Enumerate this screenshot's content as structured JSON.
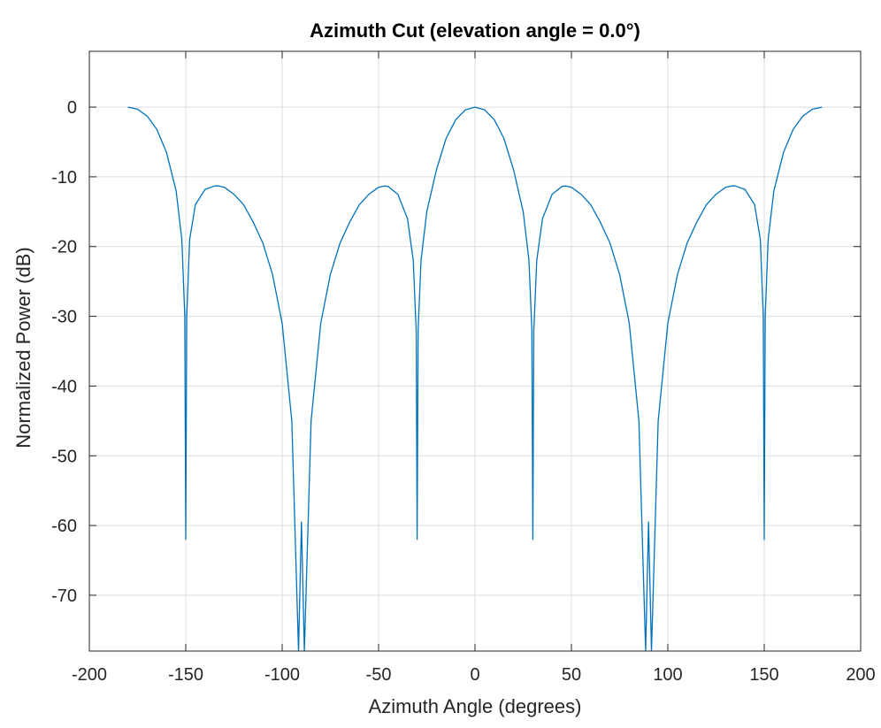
{
  "chart_data": {
    "type": "line",
    "title": "Azimuth Cut (elevation angle = 0.0°)",
    "xlabel": "Azimuth Angle (degrees)",
    "ylabel": "Normalized Power (dB)",
    "xlim": [
      -200,
      200
    ],
    "ylim": [
      -78,
      8
    ],
    "xticks": [
      -200,
      -150,
      -100,
      -50,
      0,
      50,
      100,
      150,
      200
    ],
    "yticks": [
      0,
      -10,
      -20,
      -30,
      -40,
      -50,
      -60,
      -70
    ],
    "grid": true,
    "legend": "none",
    "line_color": "#0072BD",
    "series": [
      {
        "x": [
          -180,
          -175,
          -170,
          -165,
          -160,
          -155,
          -152,
          -150.5,
          -150,
          -149.5,
          -148,
          -145,
          -140,
          -135,
          -133,
          -130,
          -125,
          -120,
          -115,
          -110,
          -105,
          -100,
          -95,
          -91.5,
          -90,
          -88.5,
          -85,
          -80,
          -75,
          -70,
          -65,
          -60,
          -55,
          -50,
          -47,
          -45,
          -40,
          -35,
          -32,
          -30.5,
          -30,
          -29.5,
          -28,
          -25,
          -20,
          -15,
          -10,
          -5,
          0,
          5,
          10,
          15,
          20,
          25,
          28,
          29.5,
          30,
          30.5,
          32,
          35,
          40,
          45,
          47,
          50,
          55,
          60,
          65,
          70,
          75,
          80,
          85,
          88.5,
          90,
          91.5,
          95,
          100,
          105,
          110,
          115,
          120,
          125,
          130,
          133,
          135,
          140,
          145,
          148,
          149.5,
          150,
          150.5,
          152,
          155,
          160,
          165,
          170,
          175,
          180
        ],
        "y": [
          0,
          -0.3,
          -1.3,
          -3.2,
          -6.5,
          -12,
          -19,
          -30,
          -62,
          -30,
          -19,
          -14,
          -11.8,
          -11.3,
          -11.3,
          -11.5,
          -12.5,
          -14,
          -16.5,
          -19.5,
          -24,
          -31,
          -45,
          -78,
          -59.5,
          -78,
          -45,
          -31,
          -24,
          -19.5,
          -16.5,
          -14,
          -12.5,
          -11.5,
          -11.3,
          -11.4,
          -12.5,
          -16,
          -22,
          -32,
          -62,
          -32,
          -22,
          -15,
          -9,
          -4.5,
          -1.8,
          -0.4,
          0,
          -0.4,
          -1.8,
          -4.5,
          -9,
          -15,
          -22,
          -32,
          -62,
          -32,
          -22,
          -16,
          -12.5,
          -11.4,
          -11.3,
          -11.5,
          -12.5,
          -14,
          -16.5,
          -19.5,
          -24,
          -31,
          -45,
          -78,
          -59.5,
          -78,
          -45,
          -31,
          -24,
          -19.5,
          -16.5,
          -14,
          -12.5,
          -11.5,
          -11.3,
          -11.3,
          -11.8,
          -14,
          -19,
          -30,
          -62,
          -30,
          -19,
          -12,
          -6.5,
          -3.2,
          -1.3,
          -0.3,
          0
        ]
      }
    ]
  }
}
